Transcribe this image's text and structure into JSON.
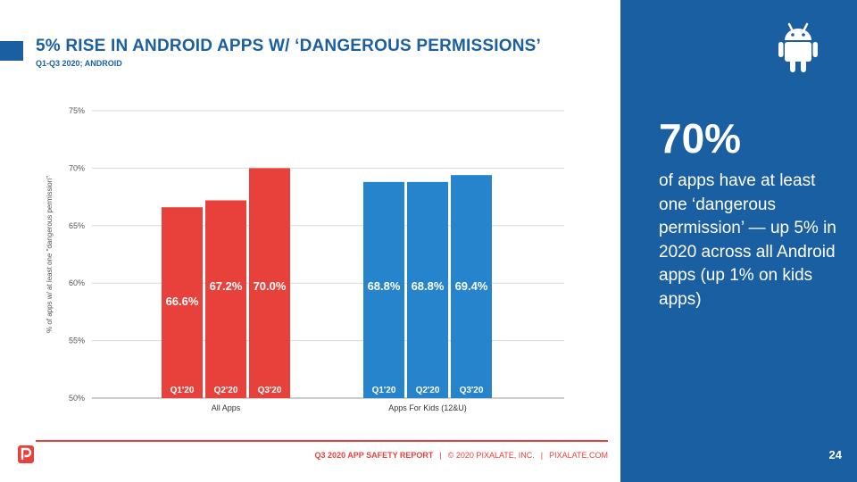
{
  "header": {
    "title": "5% RISE IN ANDROID APPS W/ ‘DANGEROUS PERMISSIONS’",
    "subtitle": "Q1-Q3 2020; ANDROID"
  },
  "side_panel": {
    "icon": "android-icon",
    "big_stat": "70%",
    "text": "of apps have at least one ‘dangerous permission’ — up 5% in 2020 across all Android apps (up 1% on kids apps)",
    "page_number": "24",
    "background_color": "#1b5fa3"
  },
  "footer": {
    "report": "Q3 2020 APP SAFETY REPORT",
    "copyright": "© 2020 PIXALATE, INC.",
    "site": "PIXALATE.COM",
    "separator": "|",
    "logo": "pixalate-logo-icon"
  },
  "chart_data": {
    "type": "bar",
    "ylabel": "% of apps w/ at least one \"dangerous permission\"",
    "ylim": [
      50,
      75
    ],
    "yticks": [
      "50%",
      "55%",
      "60%",
      "65%",
      "70%",
      "75%"
    ],
    "ytick_values": [
      50,
      55,
      60,
      65,
      70,
      75
    ],
    "grid": true,
    "groups": [
      {
        "label": "All Apps",
        "color": "#e8413c",
        "bars": [
          {
            "label": "Q1'20",
            "value": 66.6,
            "data_label": "66.6%"
          },
          {
            "label": "Q2'20",
            "value": 67.2,
            "data_label": "67.2%"
          },
          {
            "label": "Q3'20",
            "value": 70.0,
            "data_label": "70.0%"
          }
        ]
      },
      {
        "label": "Apps For Kids (12&U)",
        "color": "#2684cc",
        "bars": [
          {
            "label": "Q1'20",
            "value": 68.8,
            "data_label": "68.8%"
          },
          {
            "label": "Q2'20",
            "value": 68.8,
            "data_label": "68.8%"
          },
          {
            "label": "Q3'20",
            "value": 69.4,
            "data_label": "69.4%"
          }
        ]
      }
    ]
  }
}
